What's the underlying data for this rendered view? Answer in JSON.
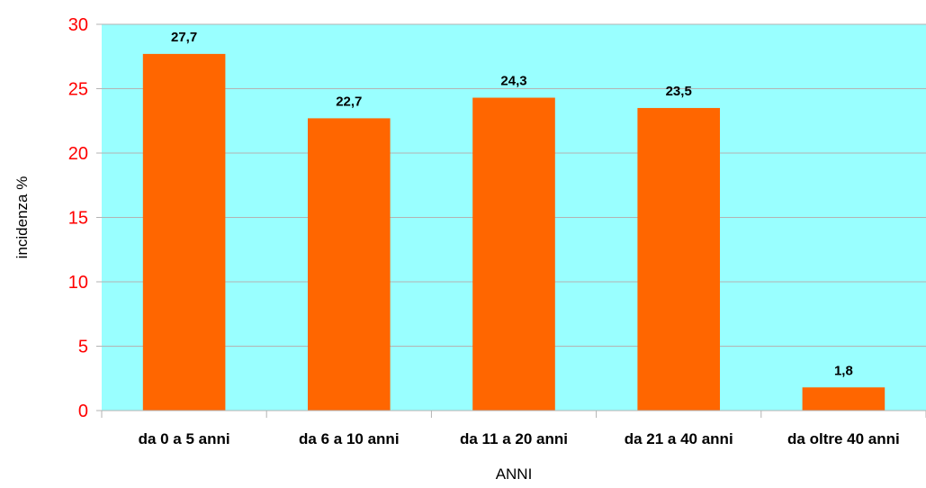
{
  "chart_data": {
    "type": "bar",
    "categories": [
      "da 0 a 5 anni",
      "da 6 a 10 anni",
      "da 11 a 20 anni",
      "da 21 a 40 anni",
      "da oltre 40 anni"
    ],
    "values": [
      27.7,
      22.7,
      24.3,
      23.5,
      1.8
    ],
    "data_labels": [
      "27,7",
      "22,7",
      "24,3",
      "23,5",
      "1,8"
    ],
    "xlabel": "ANNI",
    "ylabel": "incidenza %",
    "ylim": [
      0,
      30
    ],
    "yticks": [
      0,
      5,
      10,
      15,
      20,
      25,
      30
    ],
    "grid": true,
    "colors": {
      "bar": "#ff6600",
      "plot_background": "#99ffff",
      "gridline": "#b3b3b3",
      "tick_label_y": "#ff0000"
    }
  }
}
